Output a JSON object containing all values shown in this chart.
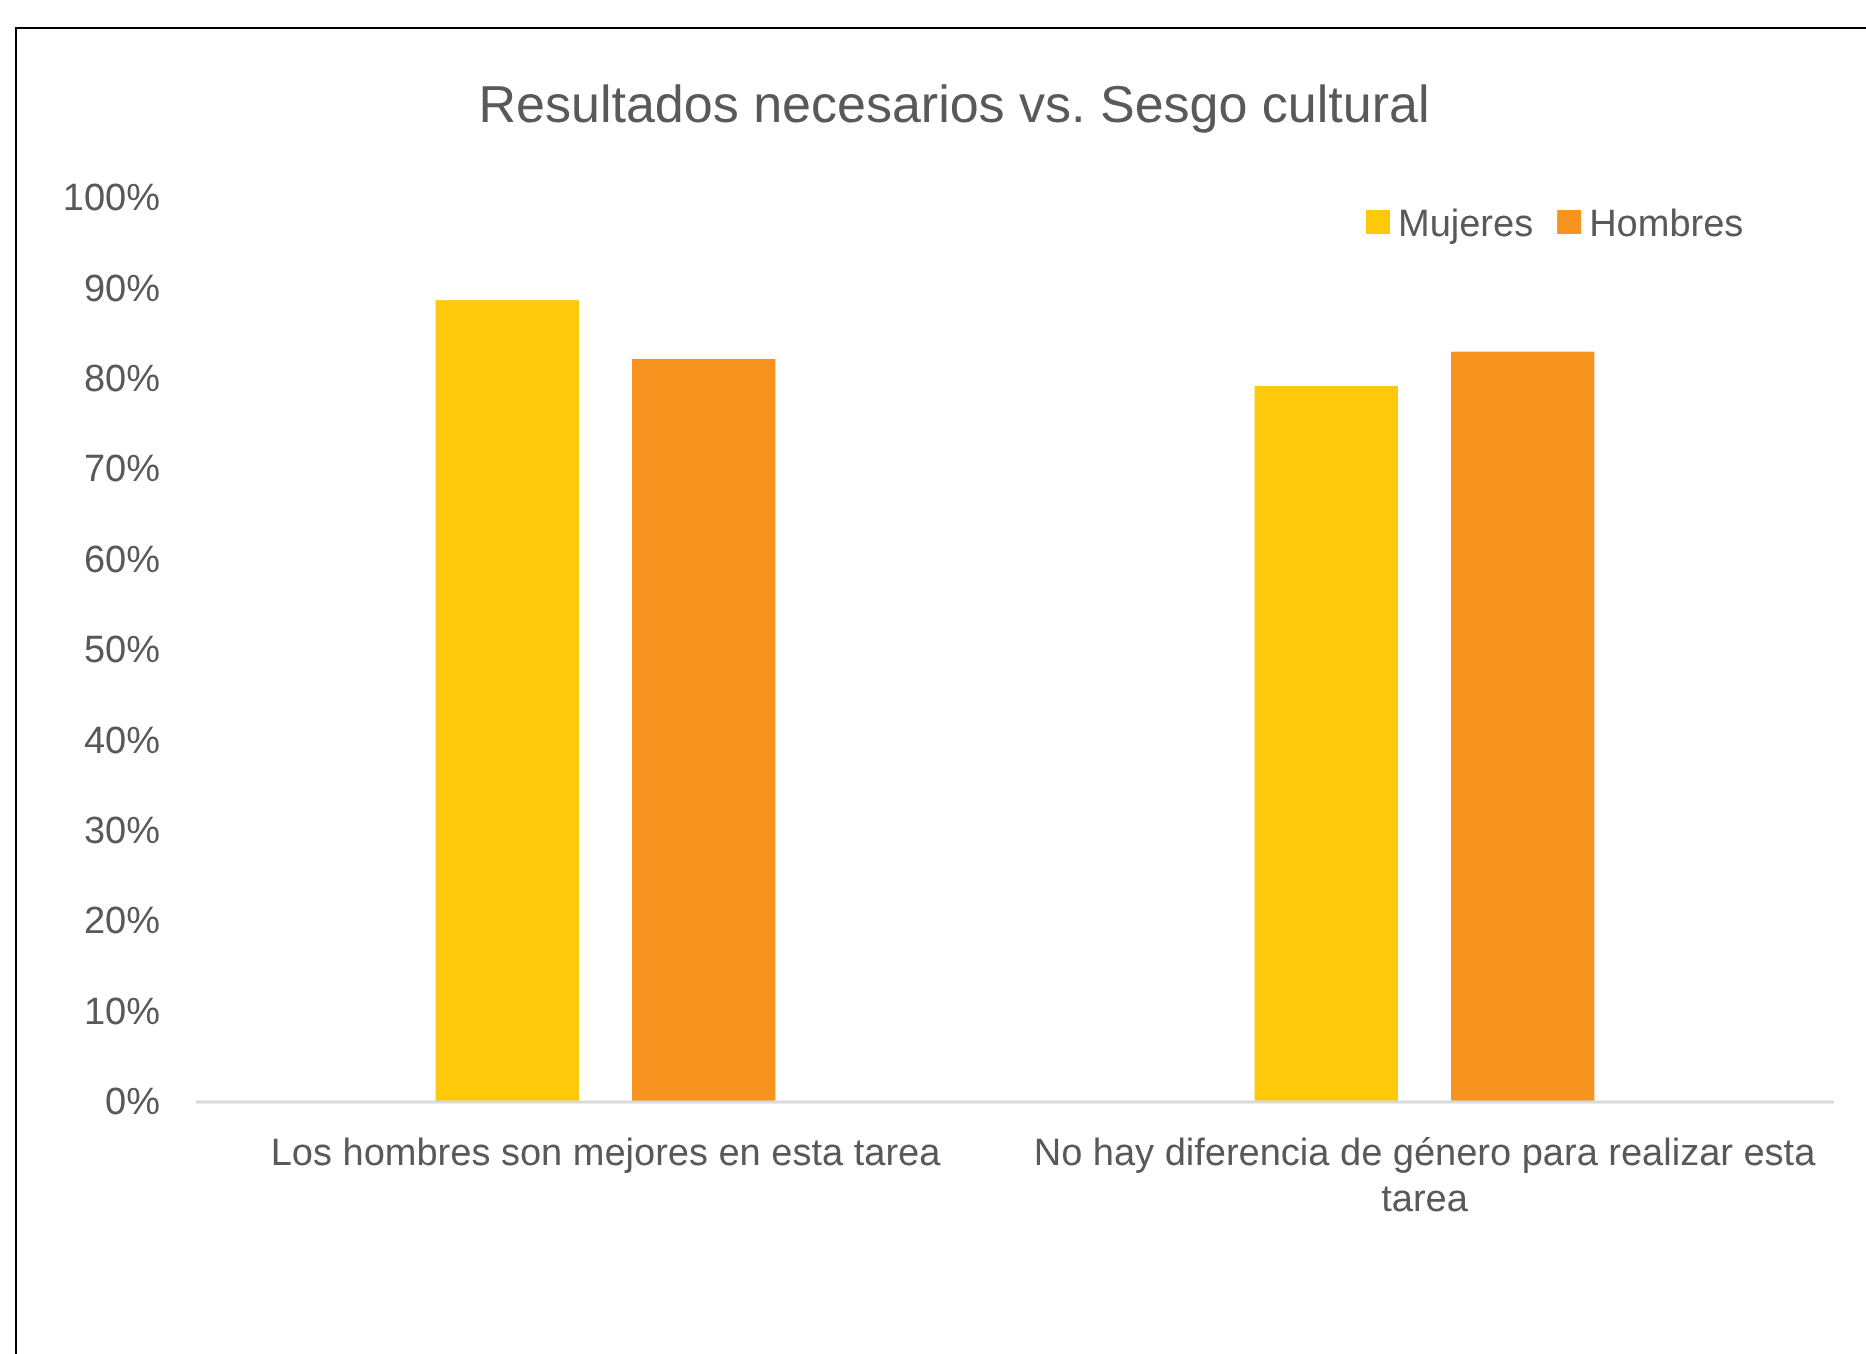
{
  "chart_data": {
    "type": "bar",
    "title": "Resultados necesarios vs. Sesgo cultural",
    "categories": [
      "Los hombres son mejores en esta tarea",
      "No hay diferencia de género para realizar esta tarea"
    ],
    "series": [
      {
        "name": "Mujeres",
        "color": "#ffc90b",
        "values": [
          88.7,
          79.2
        ]
      },
      {
        "name": "Hombres",
        "color": "#f7941f",
        "values": [
          82.2,
          83.0
        ]
      }
    ],
    "ylim": [
      0,
      100
    ],
    "yticks": [
      {
        "value": 0,
        "label": "0%"
      },
      {
        "value": 10,
        "label": "10%"
      },
      {
        "value": 20,
        "label": "20%"
      },
      {
        "value": 30,
        "label": "30%"
      },
      {
        "value": 40,
        "label": "40%"
      },
      {
        "value": 50,
        "label": "50%"
      },
      {
        "value": 60,
        "label": "60%"
      },
      {
        "value": 70,
        "label": "70%"
      },
      {
        "value": 80,
        "label": "80%"
      },
      {
        "value": 90,
        "label": "90%"
      },
      {
        "value": 100,
        "label": "100%"
      }
    ],
    "grid": false,
    "legend": "top right"
  }
}
